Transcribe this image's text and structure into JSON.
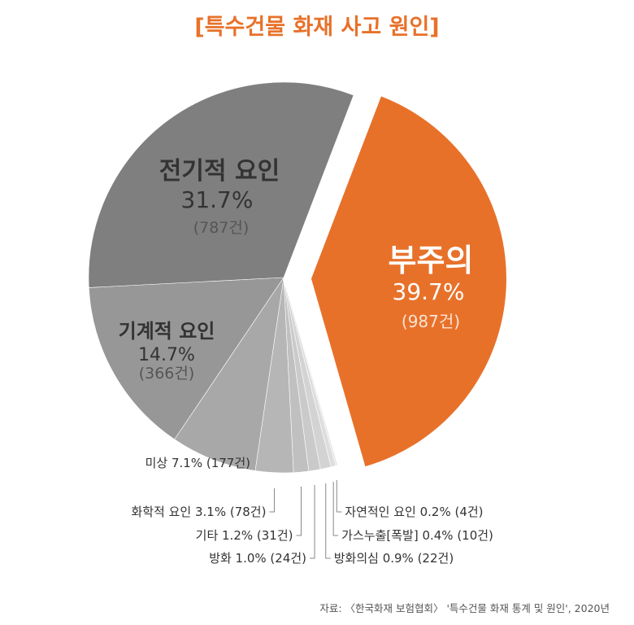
{
  "chart_data": {
    "type": "pie",
    "title": "[특수건물 화재 사고 원인]",
    "slices": [
      {
        "label": "부주의",
        "pct_text": "39.7%",
        "count_text": "(987건)",
        "value": 987,
        "color": "#e8712a",
        "exploded": true
      },
      {
        "label": "자연적인 요인",
        "pct_text": "0.2%",
        "count_text": "(4건)",
        "value": 4,
        "color": "#e6e6e6"
      },
      {
        "label": "가스누출[폭발]",
        "pct_text": "0.4%",
        "count_text": "(10건)",
        "value": 10,
        "color": "#dddddd"
      },
      {
        "label": "방화의심",
        "pct_text": "0.9%",
        "count_text": "(22건)",
        "value": 22,
        "color": "#d3d3d3"
      },
      {
        "label": "방화",
        "pct_text": "1.0%",
        "count_text": "(24건)",
        "value": 24,
        "color": "#cacaca"
      },
      {
        "label": "기타",
        "pct_text": "1.2%",
        "count_text": "(31건)",
        "value": 31,
        "color": "#c0c0c0"
      },
      {
        "label": "화학적 요인",
        "pct_text": "3.1%",
        "count_text": "(78건)",
        "value": 78,
        "color": "#b6b6b6"
      },
      {
        "label": "미상",
        "pct_text": "7.1%",
        "count_text": "(177건)",
        "value": 177,
        "color": "#a8a8a8"
      },
      {
        "label": "기계적 요인",
        "pct_text": "14.7%",
        "count_text": "(366건)",
        "value": 366,
        "color": "#979797"
      },
      {
        "label": "전기적 요인",
        "pct_text": "31.7%",
        "count_text": "(787건)",
        "value": 787,
        "color": "#7f7f7f"
      }
    ],
    "source": "자료: 〈한국화재 보험협회〉 '특수건물 화재 통계 및 원인', 2020년"
  }
}
